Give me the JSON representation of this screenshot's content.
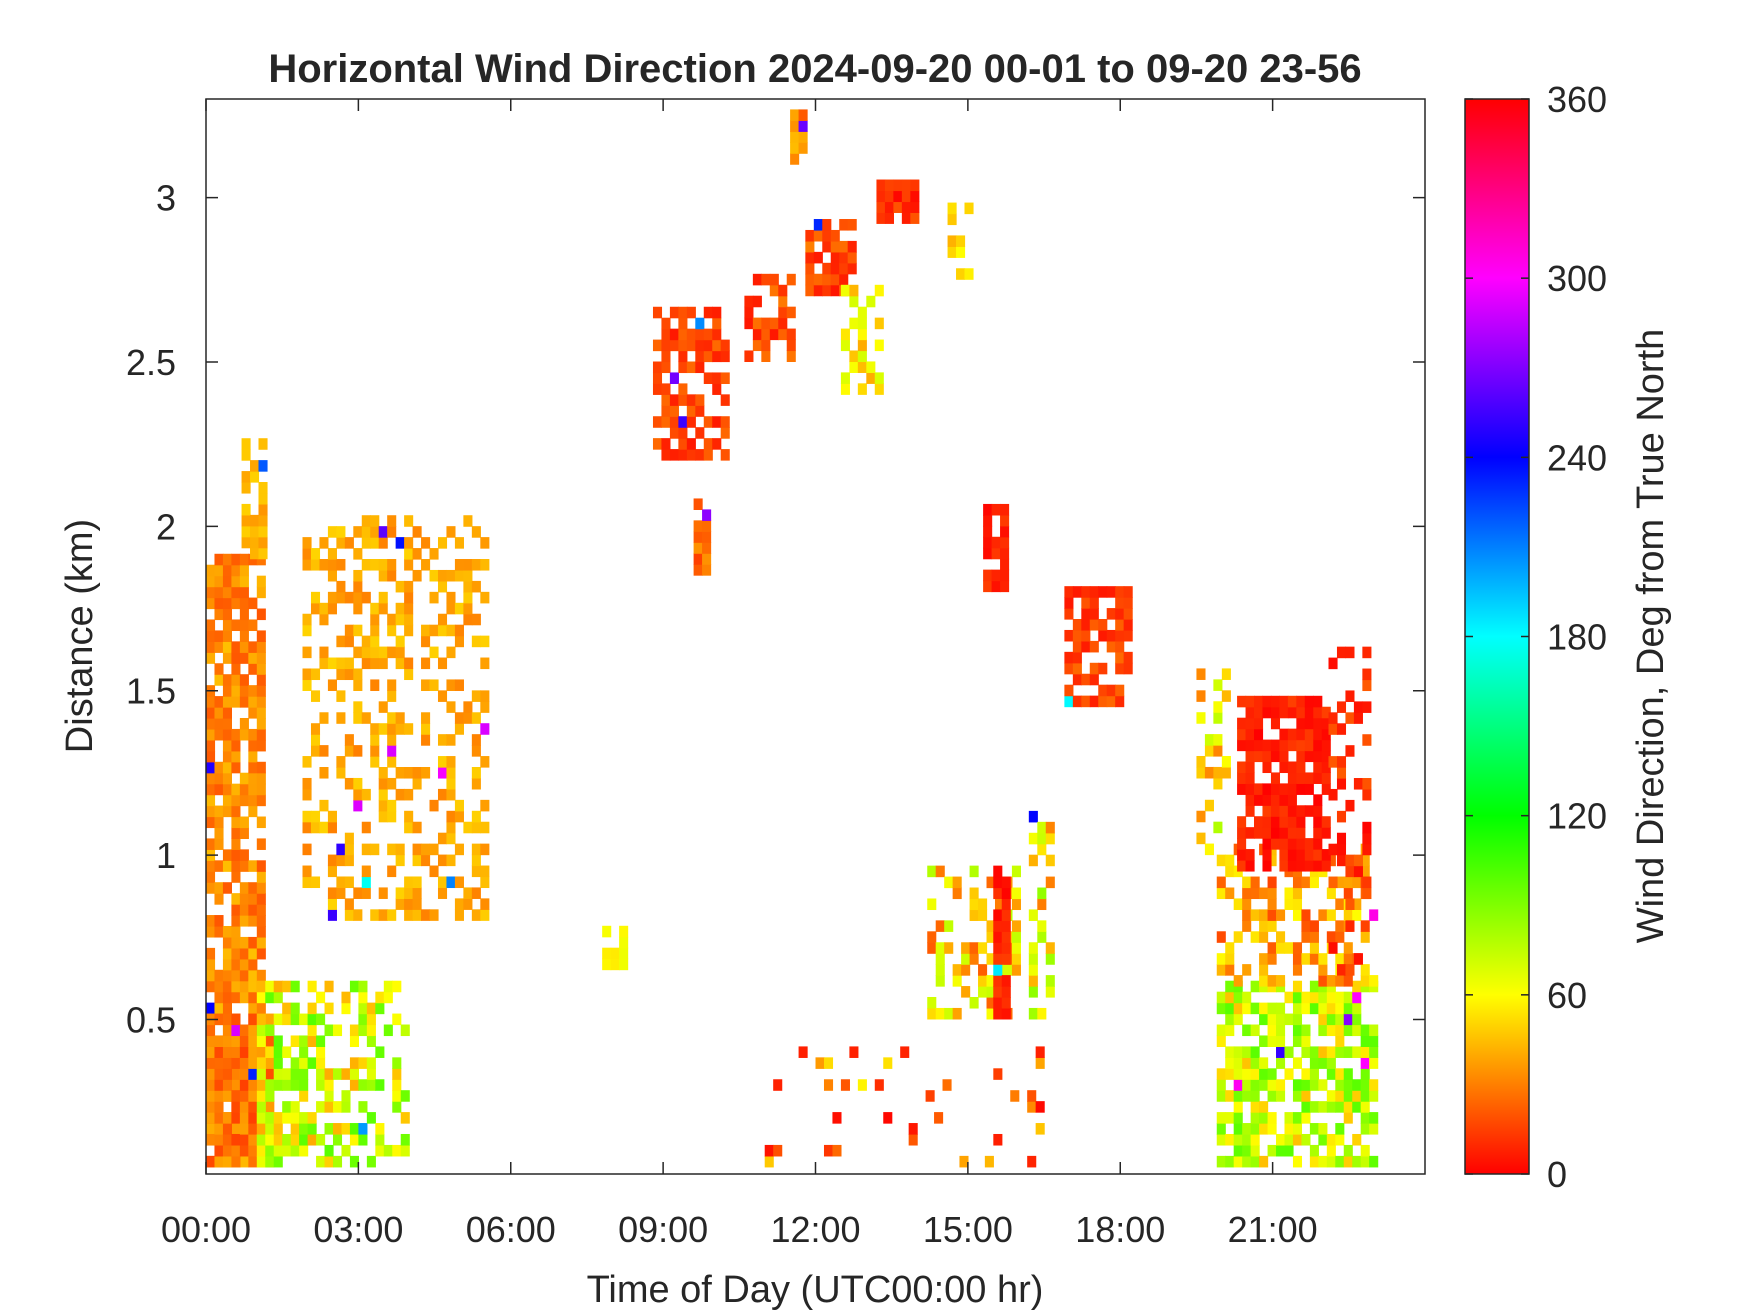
{
  "chart_data": {
    "type": "heatmap",
    "title": "Horizontal Wind Direction 2024-09-20 00-01 to 09-20 23-56",
    "xlabel": "Time of Day (UTC00:00 hr)",
    "ylabel": "Distance (km)",
    "xlim_hours": [
      0,
      24
    ],
    "ylim_km": [
      0.03,
      3.3
    ],
    "x_ticks": [
      {
        "value": 0,
        "label": "00:00"
      },
      {
        "value": 3,
        "label": "03:00"
      },
      {
        "value": 6,
        "label": "06:00"
      },
      {
        "value": 9,
        "label": "09:00"
      },
      {
        "value": 12,
        "label": "12:00"
      },
      {
        "value": 15,
        "label": "15:00"
      },
      {
        "value": 18,
        "label": "18:00"
      },
      {
        "value": 21,
        "label": "21:00"
      }
    ],
    "y_ticks": [
      {
        "value": 0.5,
        "label": "0.5"
      },
      {
        "value": 1,
        "label": "1"
      },
      {
        "value": 1.5,
        "label": "1.5"
      },
      {
        "value": 2,
        "label": "2"
      },
      {
        "value": 2.5,
        "label": "2.5"
      },
      {
        "value": 3,
        "label": "3"
      }
    ],
    "colorbar": {
      "label": "Wind Direction, Deg from True North",
      "range": [
        0,
        360
      ],
      "ticks": [
        {
          "value": 0,
          "label": "0"
        },
        {
          "value": 60,
          "label": "60"
        },
        {
          "value": 120,
          "label": "120"
        },
        {
          "value": 180,
          "label": "180"
        },
        {
          "value": 240,
          "label": "240"
        },
        {
          "value": 300,
          "label": "300"
        },
        {
          "value": 360,
          "label": "360"
        }
      ],
      "colormap_stops": [
        {
          "value": 0,
          "color": "#ff0000"
        },
        {
          "value": 60,
          "color": "#ffff00"
        },
        {
          "value": 120,
          "color": "#00ff00"
        },
        {
          "value": 180,
          "color": "#00ffff"
        },
        {
          "value": 240,
          "color": "#0000ff"
        },
        {
          "value": 300,
          "color": "#ff00ff"
        },
        {
          "value": 360,
          "color": "#ff0000"
        }
      ]
    },
    "cell_size": {
      "hours": 0.1667,
      "km": 0.0333
    },
    "regions": [
      {
        "hours": [
          0.0,
          1.1
        ],
        "km": [
          0.05,
          1.9
        ],
        "direction_deg": [
          20,
          45
        ],
        "density": 0.75
      },
      {
        "hours": [
          0.0,
          1.2
        ],
        "km": [
          0.05,
          0.5
        ],
        "direction_deg": [
          15,
          40
        ],
        "density": 0.9
      },
      {
        "hours": [
          0.7,
          1.05
        ],
        "km": [
          1.9,
          2.25
        ],
        "direction_deg": [
          35,
          50
        ],
        "density": 0.6
      },
      {
        "hours": [
          1.0,
          3.9
        ],
        "km": [
          0.05,
          0.6
        ],
        "direction_deg": [
          40,
          100
        ],
        "density": 0.55
      },
      {
        "hours": [
          1.9,
          5.5
        ],
        "km": [
          0.8,
          2.0
        ],
        "direction_deg": [
          30,
          50
        ],
        "density": 0.42
      },
      {
        "hours": [
          7.8,
          8.2
        ],
        "km": [
          0.65,
          0.78
        ],
        "direction_deg": [
          55,
          65
        ],
        "density": 0.8
      },
      {
        "hours": [
          8.8,
          10.2
        ],
        "km": [
          2.2,
          2.65
        ],
        "direction_deg": [
          5,
          25
        ],
        "density": 0.65
      },
      {
        "hours": [
          9.6,
          9.9
        ],
        "km": [
          1.85,
          2.05
        ],
        "direction_deg": [
          15,
          35
        ],
        "density": 0.8
      },
      {
        "hours": [
          10.6,
          11.5
        ],
        "km": [
          2.5,
          2.75
        ],
        "direction_deg": [
          5,
          30
        ],
        "density": 0.55
      },
      {
        "hours": [
          11.5,
          11.7
        ],
        "km": [
          3.1,
          3.25
        ],
        "direction_deg": [
          20,
          45
        ],
        "density": 0.75
      },
      {
        "hours": [
          11.8,
          12.8
        ],
        "km": [
          2.7,
          2.92
        ],
        "direction_deg": [
          5,
          30
        ],
        "density": 0.85
      },
      {
        "hours": [
          12.5,
          13.3
        ],
        "km": [
          2.4,
          2.7
        ],
        "direction_deg": [
          40,
          70
        ],
        "density": 0.5
      },
      {
        "hours": [
          13.2,
          13.9
        ],
        "km": [
          2.92,
          3.03
        ],
        "direction_deg": [
          0,
          20
        ],
        "density": 0.85
      },
      {
        "hours": [
          14.6,
          15.1
        ],
        "km": [
          2.75,
          2.95
        ],
        "direction_deg": [
          40,
          60
        ],
        "density": 0.6
      },
      {
        "hours": [
          15.3,
          15.7
        ],
        "km": [
          1.8,
          2.05
        ],
        "direction_deg": [
          0,
          15
        ],
        "density": 0.75
      },
      {
        "hours": [
          14.2,
          16.0
        ],
        "km": [
          0.5,
          0.95
        ],
        "direction_deg": [
          20,
          80
        ],
        "density": 0.45
      },
      {
        "hours": [
          15.5,
          15.7
        ],
        "km": [
          0.5,
          0.95
        ],
        "direction_deg": [
          0,
          15
        ],
        "density": 0.9
      },
      {
        "hours": [
          16.2,
          16.7
        ],
        "km": [
          0.5,
          1.1
        ],
        "direction_deg": [
          20,
          90
        ],
        "density": 0.5
      },
      {
        "hours": [
          16.9,
          18.1
        ],
        "km": [
          1.45,
          1.8
        ],
        "direction_deg": [
          5,
          25
        ],
        "density": 0.7
      },
      {
        "hours": [
          11.0,
          16.5
        ],
        "km": [
          0.05,
          0.4
        ],
        "direction_deg": [
          0,
          60
        ],
        "density": 0.12
      },
      {
        "hours": [
          19.9,
          23.0
        ],
        "km": [
          0.05,
          0.6
        ],
        "direction_deg": [
          45,
          100
        ],
        "density": 0.7
      },
      {
        "hours": [
          19.9,
          23.0
        ],
        "km": [
          0.6,
          1.0
        ],
        "direction_deg": [
          15,
          60
        ],
        "density": 0.45
      },
      {
        "hours": [
          20.3,
          22.1
        ],
        "km": [
          0.95,
          1.45
        ],
        "direction_deg": [
          0,
          15
        ],
        "density": 0.75
      },
      {
        "hours": [
          22.1,
          22.8
        ],
        "km": [
          0.6,
          1.6
        ],
        "direction_deg": [
          0,
          25
        ],
        "density": 0.3
      },
      {
        "hours": [
          19.5,
          20.1
        ],
        "km": [
          1.0,
          1.55
        ],
        "direction_deg": [
          30,
          80
        ],
        "density": 0.35
      }
    ]
  }
}
